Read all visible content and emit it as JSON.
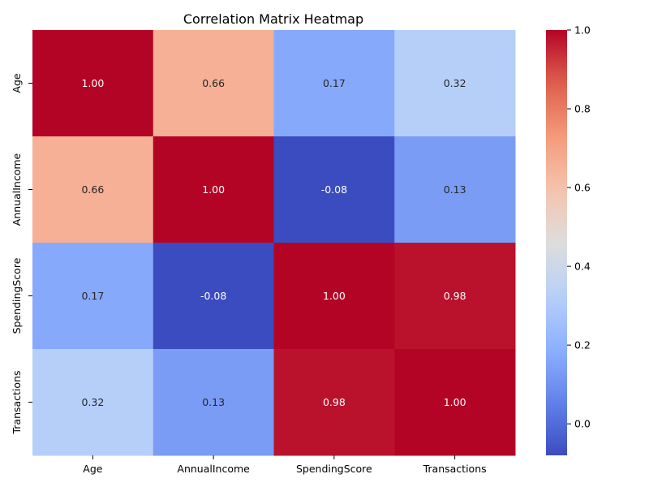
{
  "chart_data": {
    "type": "heatmap",
    "title": "Correlation Matrix Heatmap",
    "xlabel": "",
    "ylabel": "",
    "x_categories": [
      "Age",
      "AnnualIncome",
      "SpendingScore",
      "Transactions"
    ],
    "y_categories": [
      "Age",
      "AnnualIncome",
      "SpendingScore",
      "Transactions"
    ],
    "values": [
      [
        1.0,
        0.66,
        0.17,
        0.32
      ],
      [
        0.66,
        1.0,
        -0.08,
        0.13
      ],
      [
        0.17,
        -0.08,
        1.0,
        0.98
      ],
      [
        0.32,
        0.13,
        0.98,
        1.0
      ]
    ],
    "annotations": [
      [
        "1.00",
        "0.66",
        "0.17",
        "0.32"
      ],
      [
        "0.66",
        "1.00",
        "-0.08",
        "0.13"
      ],
      [
        "0.17",
        "-0.08",
        "1.00",
        "0.98"
      ],
      [
        "0.32",
        "0.13",
        "0.98",
        "1.00"
      ]
    ],
    "colormap": "coolwarm",
    "vmin": -0.08,
    "vmax": 1.0,
    "colorbar": {
      "ticks": [
        0.0,
        0.2,
        0.4,
        0.6,
        0.8,
        1.0
      ],
      "tick_labels": [
        "0.0",
        "0.2",
        "0.4",
        "0.6",
        "0.8",
        "1.0"
      ]
    },
    "legend": "right"
  }
}
